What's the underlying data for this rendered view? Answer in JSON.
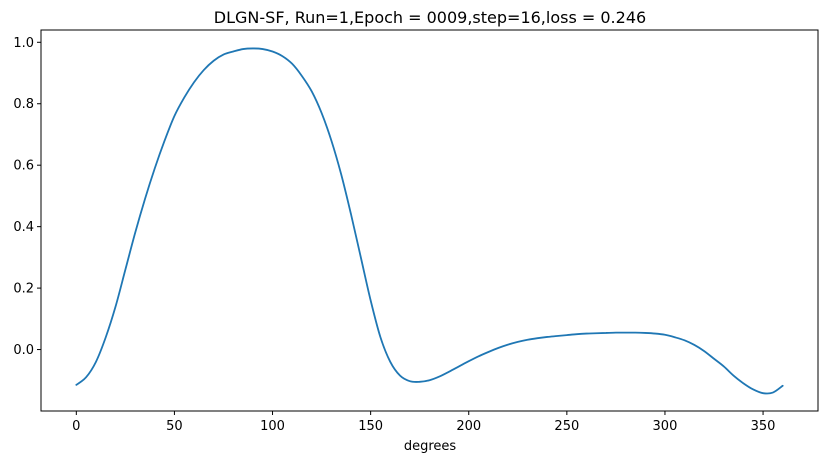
{
  "chart_data": {
    "type": "line",
    "title": "DLGN-SF, Run=1,Epoch = 0009,step=16,loss = 0.246",
    "xlabel": "degrees",
    "ylabel": "",
    "xlim": [
      -18,
      378
    ],
    "ylim": [
      -0.2,
      1.04
    ],
    "xticks": [
      0,
      50,
      100,
      150,
      200,
      250,
      300,
      350
    ],
    "yticks": [
      0.0,
      0.2,
      0.4,
      0.6,
      0.8,
      1.0
    ],
    "xtick_labels": [
      "0",
      "50",
      "100",
      "150",
      "200",
      "250",
      "300",
      "350"
    ],
    "ytick_labels": [
      "0.0",
      "0.2",
      "0.4",
      "0.6",
      "0.8",
      "1.0"
    ],
    "grid": false,
    "series": [
      {
        "color": "#1f77b4",
        "x": [
          0,
          5,
          10,
          15,
          20,
          25,
          30,
          35,
          40,
          45,
          50,
          55,
          60,
          65,
          70,
          75,
          80,
          85,
          90,
          95,
          100,
          105,
          110,
          115,
          120,
          125,
          130,
          135,
          140,
          145,
          150,
          155,
          160,
          165,
          170,
          175,
          180,
          185,
          190,
          195,
          200,
          205,
          210,
          215,
          220,
          225,
          230,
          235,
          240,
          245,
          250,
          255,
          260,
          265,
          270,
          275,
          280,
          285,
          290,
          295,
          300,
          305,
          310,
          315,
          320,
          325,
          330,
          335,
          340,
          345,
          350,
          355,
          360
        ],
        "y": [
          -0.115,
          -0.09,
          -0.04,
          0.04,
          0.14,
          0.26,
          0.38,
          0.49,
          0.59,
          0.68,
          0.76,
          0.82,
          0.87,
          0.91,
          0.94,
          0.96,
          0.97,
          0.978,
          0.98,
          0.978,
          0.97,
          0.955,
          0.93,
          0.89,
          0.84,
          0.77,
          0.68,
          0.57,
          0.44,
          0.3,
          0.16,
          0.04,
          -0.04,
          -0.085,
          -0.103,
          -0.105,
          -0.1,
          -0.088,
          -0.072,
          -0.055,
          -0.038,
          -0.022,
          -0.008,
          0.005,
          0.016,
          0.025,
          0.032,
          0.037,
          0.041,
          0.044,
          0.047,
          0.05,
          0.052,
          0.053,
          0.054,
          0.055,
          0.055,
          0.055,
          0.054,
          0.052,
          0.048,
          0.04,
          0.03,
          0.015,
          -0.005,
          -0.03,
          -0.055,
          -0.085,
          -0.11,
          -0.13,
          -0.142,
          -0.14,
          -0.118
        ]
      }
    ]
  }
}
